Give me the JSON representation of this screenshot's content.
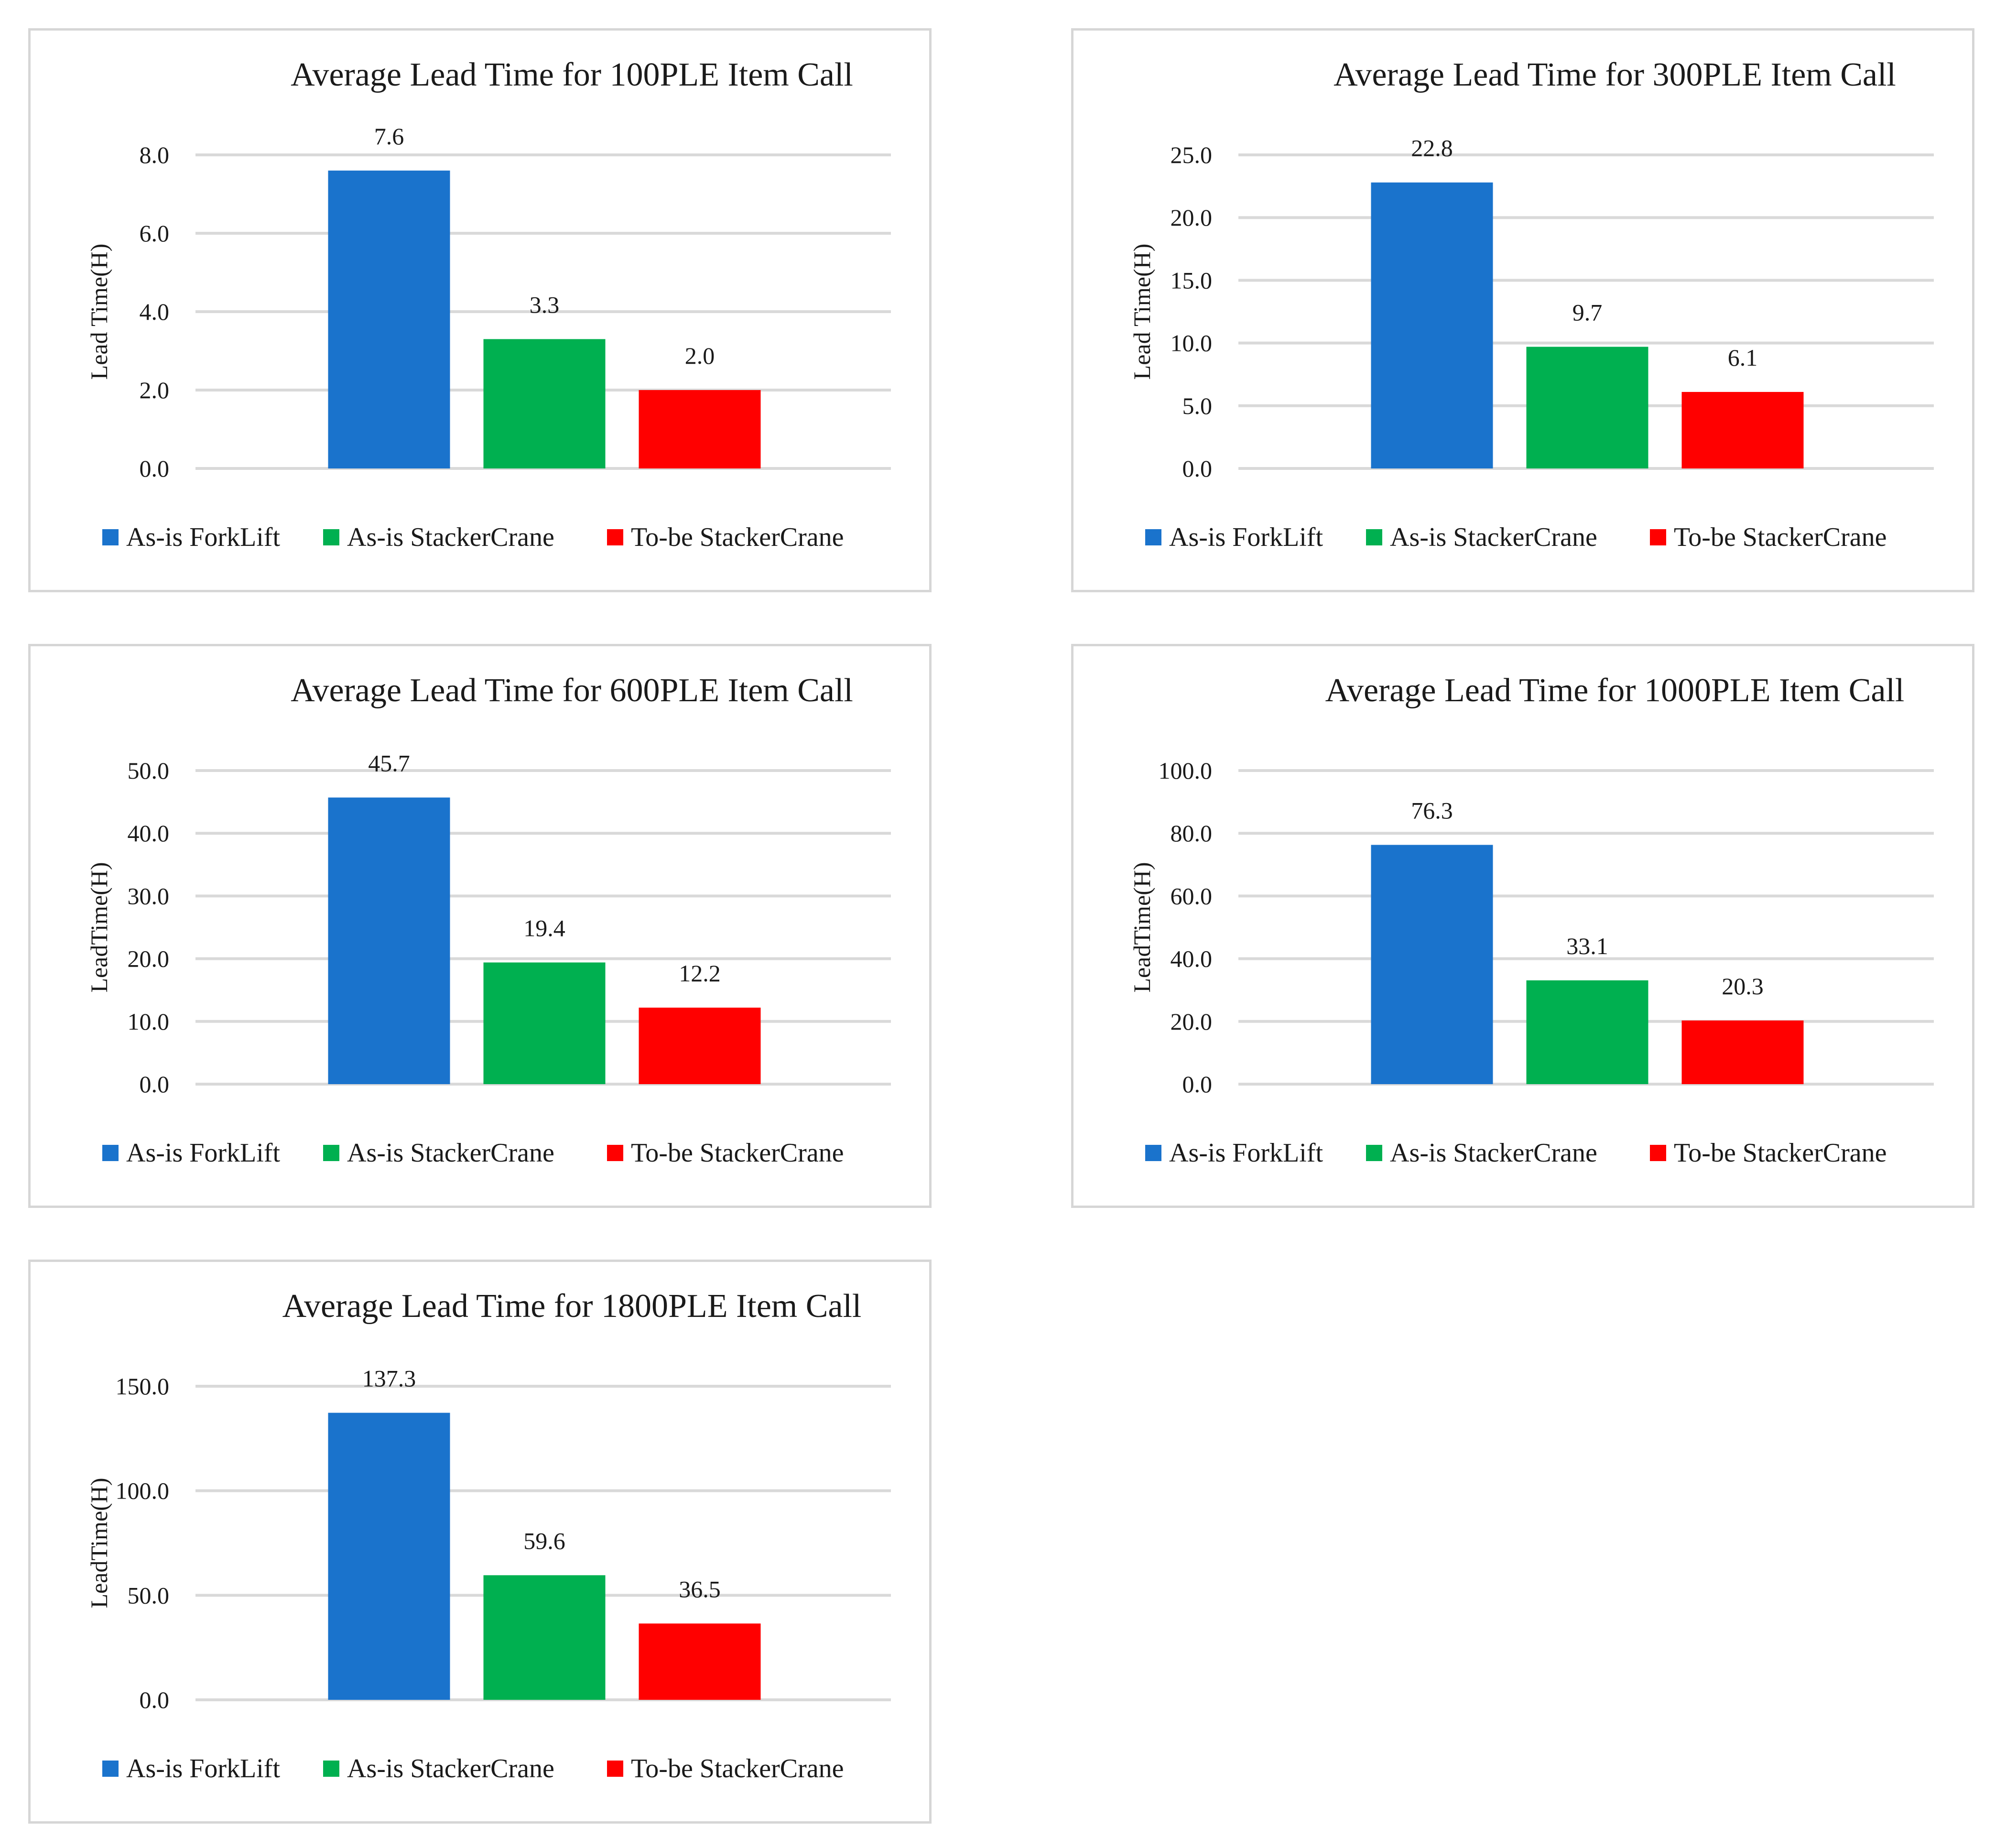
{
  "colors": {
    "forklift": "#1a73cc",
    "stacker_asis": "#00b050",
    "stacker_tobe": "#ff0000",
    "grid": "#d9d9d9",
    "border": "#d6d6d6"
  },
  "chart_data": [
    {
      "type": "bar",
      "title": "Average Lead Time for 100PLE Item Call",
      "ylabel": "Lead Time(H)",
      "xlabel": "",
      "categories": [
        "As-is ForkLift",
        "As-is StackerCrane",
        "To-be StackerCrane"
      ],
      "values": [
        7.6,
        3.3,
        2.0
      ],
      "data_labels": [
        "7.6",
        "3.3",
        "2.0"
      ],
      "ylim": [
        0,
        8
      ],
      "yticks": [
        0,
        2,
        4,
        6,
        8
      ],
      "ytick_labels": [
        "0.0",
        "2.0",
        "4.0",
        "6.0",
        "8.0"
      ],
      "grid": true,
      "legend": "bottom"
    },
    {
      "type": "bar",
      "title": "Average Lead Time for 300PLE Item Call",
      "ylabel": "Lead Time(H)",
      "xlabel": "",
      "categories": [
        "As-is ForkLift",
        "As-is StackerCrane",
        "To-be StackerCrane"
      ],
      "values": [
        22.8,
        9.7,
        6.1
      ],
      "data_labels": [
        "22.8",
        "9.7",
        "6.1"
      ],
      "ylim": [
        0,
        25
      ],
      "yticks": [
        0,
        5,
        10,
        15,
        20,
        25
      ],
      "ytick_labels": [
        "0.0",
        "5.0",
        "10.0",
        "15.0",
        "20.0",
        "25.0"
      ],
      "grid": true,
      "legend": "bottom"
    },
    {
      "type": "bar",
      "title": "Average Lead Time for 600PLE Item Call",
      "ylabel": "LeadTime(H)",
      "xlabel": "",
      "categories": [
        "As-is ForkLift",
        "As-is StackerCrane",
        "To-be StackerCrane"
      ],
      "values": [
        45.7,
        19.4,
        12.2
      ],
      "data_labels": [
        "45.7",
        "19.4",
        "12.2"
      ],
      "ylim": [
        0,
        50
      ],
      "yticks": [
        0,
        10,
        20,
        30,
        40,
        50
      ],
      "ytick_labels": [
        "0.0",
        "10.0",
        "20.0",
        "30.0",
        "40.0",
        "50.0"
      ],
      "grid": true,
      "legend": "bottom"
    },
    {
      "type": "bar",
      "title": "Average Lead Time for 1000PLE Item Call",
      "ylabel": "LeadTime(H)",
      "xlabel": "",
      "categories": [
        "As-is ForkLift",
        "As-is StackerCrane",
        "To-be StackerCrane"
      ],
      "values": [
        76.3,
        33.1,
        20.3
      ],
      "data_labels": [
        "76.3",
        "33.1",
        "20.3"
      ],
      "ylim": [
        0,
        100
      ],
      "yticks": [
        0,
        20,
        40,
        60,
        80,
        100
      ],
      "ytick_labels": [
        "0.0",
        "20.0",
        "40.0",
        "60.0",
        "80.0",
        "100.0"
      ],
      "grid": true,
      "legend": "bottom"
    },
    {
      "type": "bar",
      "title": "Average Lead Time for 1800PLE Item Call",
      "ylabel": "LeadTime(H)",
      "xlabel": "",
      "categories": [
        "As-is ForkLift",
        "As-is StackerCrane",
        "To-be StackerCrane"
      ],
      "values": [
        137.3,
        59.6,
        36.5
      ],
      "data_labels": [
        "137.3",
        "59.6",
        "36.5"
      ],
      "ylim": [
        0,
        150
      ],
      "yticks": [
        0,
        50,
        100,
        150
      ],
      "ytick_labels": [
        "0.0",
        "50.0",
        "100.0",
        "150.0"
      ],
      "grid": true,
      "legend": "bottom"
    }
  ]
}
